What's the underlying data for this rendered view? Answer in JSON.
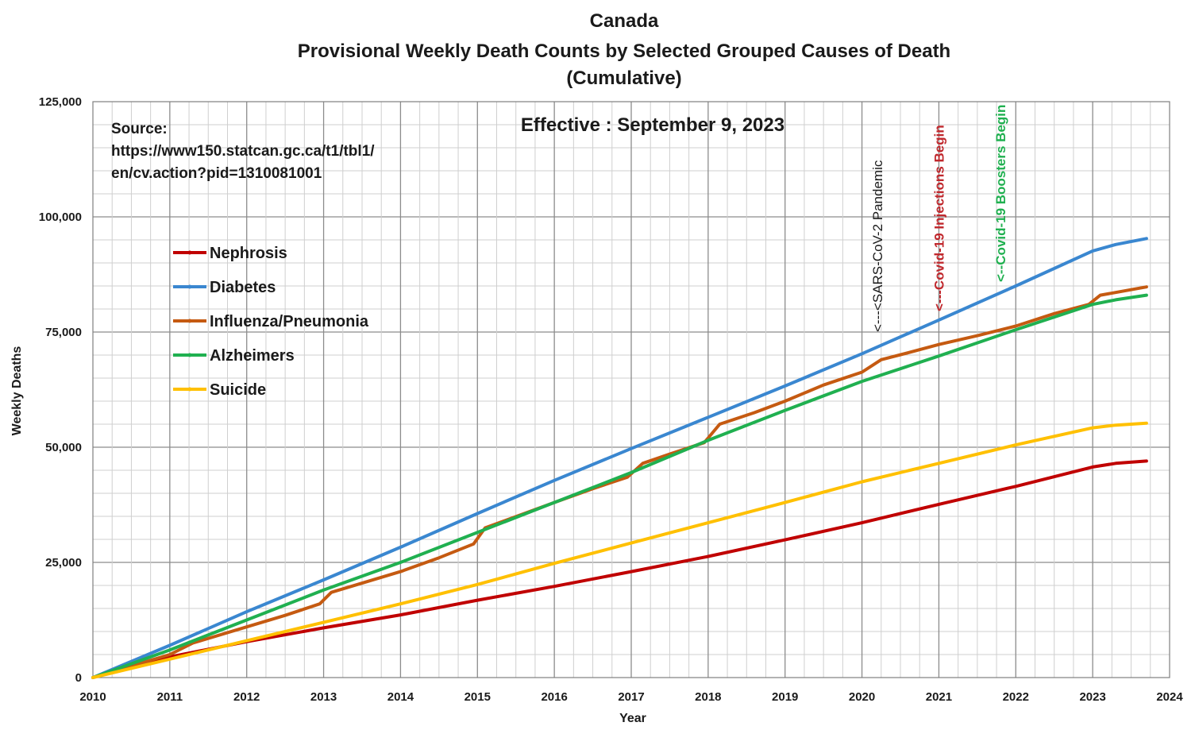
{
  "chart_data": {
    "type": "line",
    "title_lines": [
      "Canada",
      "Provisional Weekly Death Counts by Selected Grouped Causes of Death",
      "(Cumulative)"
    ],
    "xlabel": "Year",
    "ylabel": "Weekly Deaths",
    "xlim": [
      2010,
      2024
    ],
    "ylim": [
      0,
      125000
    ],
    "x_ticks": [
      "2010",
      "2011",
      "2012",
      "2013",
      "2014",
      "2015",
      "2016",
      "2017",
      "2018",
      "2019",
      "2020",
      "2021",
      "2022",
      "2023",
      "2024"
    ],
    "y_ticks": [
      "0",
      "25,000",
      "50,000",
      "75,000",
      "100,000",
      "125,000"
    ],
    "grid": true,
    "legend_placement": "upper-left",
    "source_text": [
      "Source:",
      "https://www150.statcan.gc.ca/t1/tbl1/",
      "en/cv.action?pid=1310081001"
    ],
    "effective_text": "Effective : September 9, 2023",
    "annotations": [
      {
        "text": "<---<SARS-CoV-2 Pandemic",
        "x": 2020.2,
        "color": "#1a1a1a"
      },
      {
        "text": "<---Covid-19 Injections Begin",
        "x": 2021.0,
        "color": "#c0282d"
      },
      {
        "text": "<--Covid-19 Boosters Begin",
        "x": 2021.8,
        "color": "#20b050"
      }
    ],
    "series": [
      {
        "name": "Nephrosis",
        "color": "#c00000",
        "points": [
          [
            2010,
            0
          ],
          [
            2011,
            4500
          ],
          [
            2012,
            7800
          ],
          [
            2013,
            10800
          ],
          [
            2014,
            13600
          ],
          [
            2015,
            16800
          ],
          [
            2016,
            19800
          ],
          [
            2017,
            23000
          ],
          [
            2018,
            26300
          ],
          [
            2019,
            29900
          ],
          [
            2020,
            33600
          ],
          [
            2021,
            37600
          ],
          [
            2022,
            41500
          ],
          [
            2023,
            45700
          ],
          [
            2023.3,
            46500
          ],
          [
            2023.7,
            47000
          ]
        ]
      },
      {
        "name": "Diabetes",
        "color": "#3a87d0",
        "points": [
          [
            2010,
            0
          ],
          [
            2011,
            7000
          ],
          [
            2012,
            14300
          ],
          [
            2013,
            21200
          ],
          [
            2014,
            28300
          ],
          [
            2015,
            35600
          ],
          [
            2016,
            42800
          ],
          [
            2017,
            49700
          ],
          [
            2018,
            56500
          ],
          [
            2019,
            63300
          ],
          [
            2020,
            70300
          ],
          [
            2021,
            77600
          ],
          [
            2022,
            85000
          ],
          [
            2023,
            92600
          ],
          [
            2023.3,
            94000
          ],
          [
            2023.7,
            95300
          ]
        ]
      },
      {
        "name": "Influenza/Pneumonia",
        "color": "#c55a11",
        "points": [
          [
            2010,
            0
          ],
          [
            2010.5,
            2500
          ],
          [
            2011,
            5000
          ],
          [
            2011.3,
            7500
          ],
          [
            2012,
            11000
          ],
          [
            2012.5,
            13500
          ],
          [
            2012.95,
            16000
          ],
          [
            2013.1,
            18500
          ],
          [
            2014,
            23000
          ],
          [
            2014.5,
            26000
          ],
          [
            2014.95,
            29000
          ],
          [
            2015.1,
            32500
          ],
          [
            2016,
            38000
          ],
          [
            2016.5,
            41000
          ],
          [
            2016.95,
            43500
          ],
          [
            2017.15,
            46500
          ],
          [
            2017.5,
            48500
          ],
          [
            2017.95,
            51000
          ],
          [
            2018.15,
            55000
          ],
          [
            2018.6,
            57500
          ],
          [
            2019,
            60000
          ],
          [
            2019.5,
            63500
          ],
          [
            2020,
            66300
          ],
          [
            2020.25,
            69000
          ],
          [
            2020.6,
            70500
          ],
          [
            2021,
            72300
          ],
          [
            2021.5,
            74200
          ],
          [
            2022,
            76300
          ],
          [
            2022.5,
            79000
          ],
          [
            2022.95,
            81000
          ],
          [
            2023.1,
            83000
          ],
          [
            2023.7,
            84800
          ]
        ]
      },
      {
        "name": "Alzheimers",
        "color": "#20b050",
        "points": [
          [
            2010,
            0
          ],
          [
            2011,
            6000
          ],
          [
            2012,
            12500
          ],
          [
            2013,
            19000
          ],
          [
            2014,
            25000
          ],
          [
            2015,
            31500
          ],
          [
            2016,
            38000
          ],
          [
            2017,
            44500
          ],
          [
            2018,
            51500
          ],
          [
            2019,
            58000
          ],
          [
            2020,
            64300
          ],
          [
            2021,
            69800
          ],
          [
            2022,
            75500
          ],
          [
            2023,
            81000
          ],
          [
            2023.3,
            82000
          ],
          [
            2023.7,
            83000
          ]
        ]
      },
      {
        "name": "Suicide",
        "color": "#ffc000",
        "points": [
          [
            2010,
            0
          ],
          [
            2011,
            4000
          ],
          [
            2012,
            8000
          ],
          [
            2013,
            12000
          ],
          [
            2014,
            16000
          ],
          [
            2015,
            20200
          ],
          [
            2016,
            24800
          ],
          [
            2017,
            29200
          ],
          [
            2018,
            33600
          ],
          [
            2019,
            38000
          ],
          [
            2020,
            42500
          ],
          [
            2021,
            46500
          ],
          [
            2022,
            50500
          ],
          [
            2023,
            54200
          ],
          [
            2023.3,
            54800
          ],
          [
            2023.7,
            55200
          ]
        ]
      }
    ]
  }
}
